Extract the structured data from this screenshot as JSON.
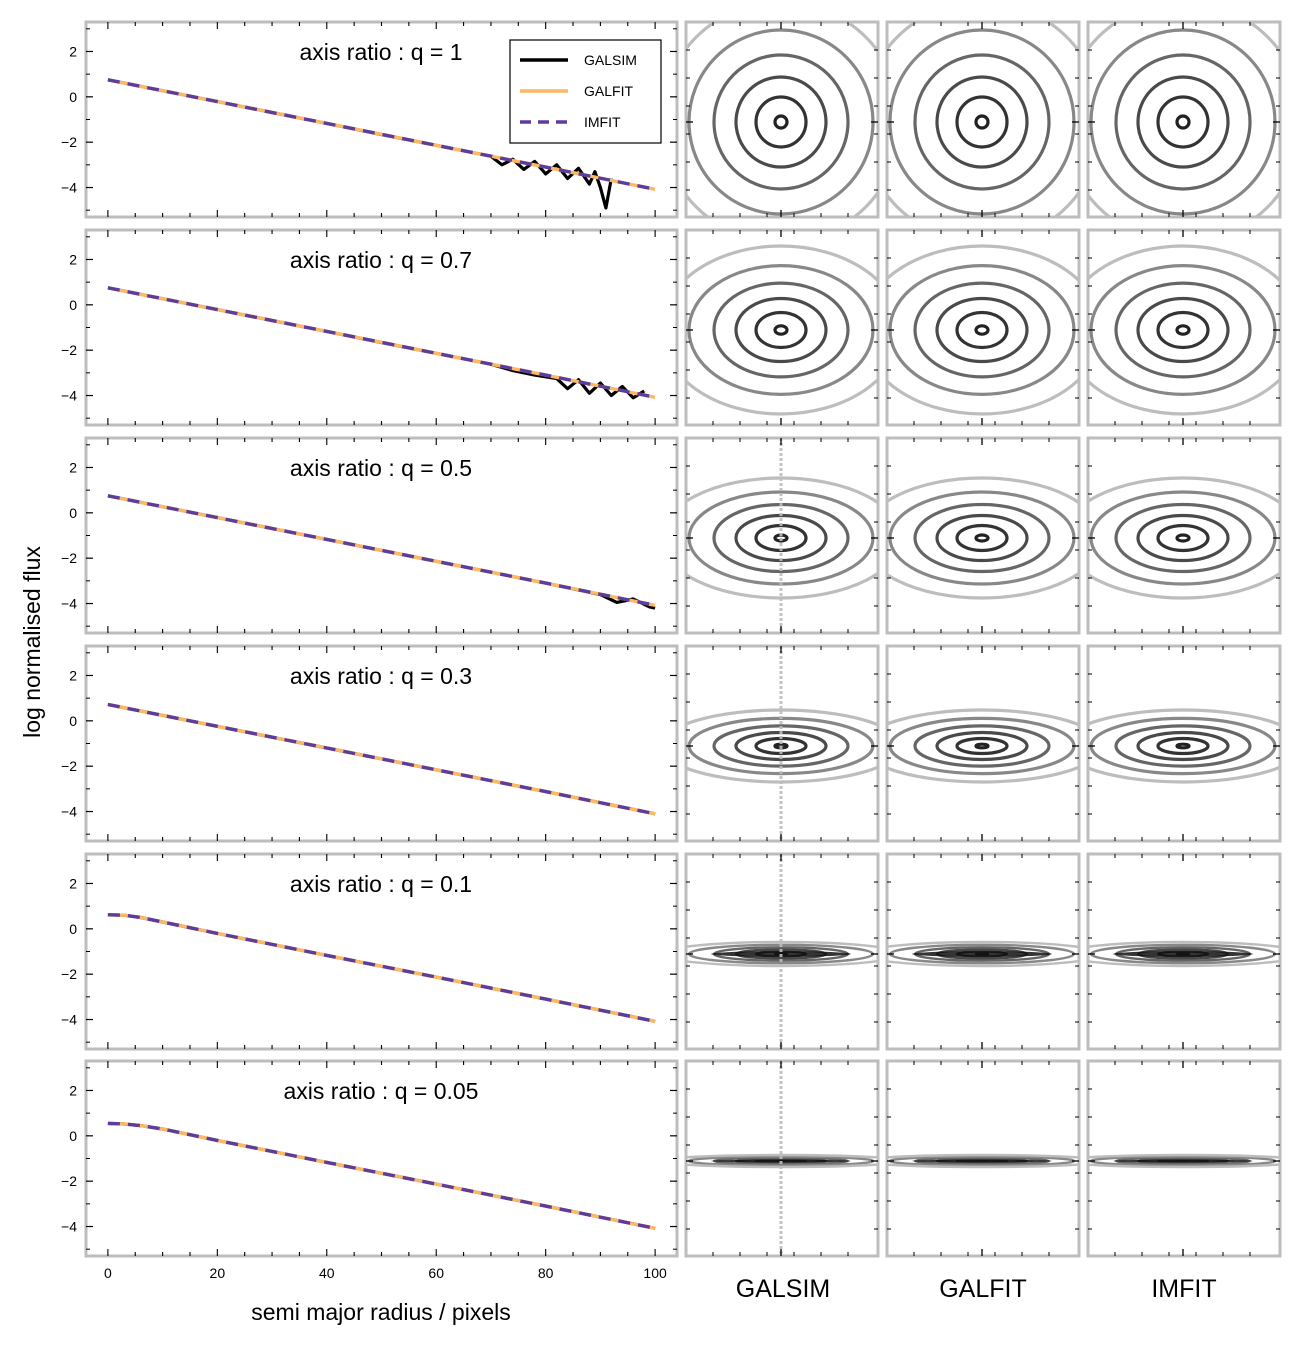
{
  "ylabel": "log normalised flux",
  "xlabel": "semi major radius / pixels",
  "column_labels": [
    "GALSIM",
    "GALFIT",
    "IMFIT"
  ],
  "colors": {
    "GALSIM": "#000000",
    "GALFIT": "#fdb863",
    "IMFIT": "#5e3c99",
    "frame": "#bdbdbd"
  },
  "legend": [
    {
      "label": "GALSIM",
      "style": "solid",
      "color": "#000000"
    },
    {
      "label": "GALFIT",
      "style": "solid",
      "color": "#fdb863"
    },
    {
      "label": "IMFIT",
      "style": "dashed",
      "color": "#5e3c99"
    }
  ],
  "panel_titles": [
    "axis ratio : q = 1",
    "axis ratio : q = 0.7",
    "axis ratio : q = 0.5",
    "axis ratio : q = 0.3",
    "axis ratio : q = 0.1",
    "axis ratio : q = 0.05"
  ],
  "chart_data": {
    "type": "line",
    "xlim": [
      -4,
      104
    ],
    "ylim": [
      -5.3,
      3.3
    ],
    "xticks": [
      0,
      20,
      40,
      60,
      80,
      100
    ],
    "yticks": [
      -4,
      -2,
      0,
      2
    ],
    "legend_position": "top-right (first panel)",
    "panels": [
      {
        "q": 1,
        "series": [
          {
            "name": "GALSIM",
            "x": [
              0,
              10,
              20,
              30,
              40,
              50,
              60,
              70,
              72,
              74,
              76,
              78,
              80,
              82,
              84,
              86,
              88,
              89,
              90,
              91,
              92
            ],
            "y": [
              0.75,
              0.27,
              -0.21,
              -0.69,
              -1.17,
              -1.66,
              -2.14,
              -2.62,
              -3.0,
              -2.75,
              -3.2,
              -2.85,
              -3.4,
              -3.0,
              -3.6,
              -3.15,
              -3.85,
              -3.3,
              -4.0,
              -4.9,
              -3.6
            ]
          },
          {
            "name": "GALFIT",
            "x": [
              0,
              20,
              40,
              60,
              80,
              100
            ],
            "y": [
              0.75,
              -0.21,
              -1.17,
              -2.14,
              -3.1,
              -4.08
            ]
          },
          {
            "name": "IMFIT",
            "x": [
              0,
              20,
              40,
              60,
              80,
              100
            ],
            "y": [
              0.75,
              -0.21,
              -1.17,
              -2.14,
              -3.1,
              -4.08
            ]
          }
        ]
      },
      {
        "q": 0.7,
        "series": [
          {
            "name": "GALSIM",
            "x": [
              0,
              10,
              20,
              30,
              40,
              50,
              60,
              70,
              74,
              78,
              82,
              84,
              86,
              88,
              90,
              92,
              94,
              96,
              98
            ],
            "y": [
              0.75,
              0.27,
              -0.21,
              -0.69,
              -1.17,
              -1.66,
              -2.14,
              -2.62,
              -2.9,
              -3.1,
              -3.25,
              -3.7,
              -3.3,
              -3.9,
              -3.45,
              -4.0,
              -3.6,
              -4.1,
              -3.8
            ]
          },
          {
            "name": "GALFIT",
            "x": [
              0,
              20,
              40,
              60,
              80,
              100
            ],
            "y": [
              0.75,
              -0.21,
              -1.17,
              -2.14,
              -3.1,
              -4.08
            ]
          },
          {
            "name": "IMFIT",
            "x": [
              0,
              20,
              40,
              60,
              80,
              100
            ],
            "y": [
              0.75,
              -0.21,
              -1.17,
              -2.14,
              -3.1,
              -4.08
            ]
          }
        ]
      },
      {
        "q": 0.5,
        "series": [
          {
            "name": "GALSIM",
            "x": [
              0,
              20,
              40,
              60,
              80,
              90,
              93,
              96,
              99,
              100
            ],
            "y": [
              0.75,
              -0.21,
              -1.17,
              -2.14,
              -3.1,
              -3.6,
              -3.95,
              -3.8,
              -4.15,
              -4.2
            ]
          },
          {
            "name": "GALFIT",
            "x": [
              0,
              20,
              40,
              60,
              80,
              100
            ],
            "y": [
              0.75,
              -0.21,
              -1.17,
              -2.14,
              -3.1,
              -4.08
            ]
          },
          {
            "name": "IMFIT",
            "x": [
              0,
              20,
              40,
              60,
              80,
              100
            ],
            "y": [
              0.75,
              -0.21,
              -1.17,
              -2.14,
              -3.1,
              -4.08
            ]
          }
        ]
      },
      {
        "q": 0.3,
        "series": [
          {
            "name": "GALSIM",
            "x": [
              0,
              20,
              40,
              60,
              80,
              100
            ],
            "y": [
              0.72,
              -0.24,
              -1.2,
              -2.16,
              -3.12,
              -4.1
            ]
          },
          {
            "name": "GALFIT",
            "x": [
              0,
              20,
              40,
              60,
              80,
              100
            ],
            "y": [
              0.72,
              -0.24,
              -1.2,
              -2.16,
              -3.12,
              -4.1
            ]
          },
          {
            "name": "IMFIT",
            "x": [
              0,
              20,
              40,
              60,
              80,
              100
            ],
            "y": [
              0.72,
              -0.24,
              -1.2,
              -2.16,
              -3.12,
              -4.1
            ]
          }
        ]
      },
      {
        "q": 0.1,
        "series": [
          {
            "name": "GALSIM",
            "x": [
              0,
              3,
              6,
              10,
              20,
              40,
              60,
              80,
              100
            ],
            "y": [
              0.62,
              0.6,
              0.5,
              0.3,
              -0.2,
              -1.17,
              -2.13,
              -3.1,
              -4.08
            ]
          },
          {
            "name": "GALFIT",
            "x": [
              0,
              3,
              6,
              10,
              20,
              40,
              60,
              80,
              100
            ],
            "y": [
              0.62,
              0.6,
              0.5,
              0.3,
              -0.2,
              -1.17,
              -2.13,
              -3.1,
              -4.08
            ]
          },
          {
            "name": "IMFIT",
            "x": [
              0,
              3,
              6,
              10,
              20,
              40,
              60,
              80,
              100
            ],
            "y": [
              0.62,
              0.6,
              0.5,
              0.3,
              -0.2,
              -1.17,
              -2.13,
              -3.1,
              -4.08
            ]
          }
        ]
      },
      {
        "q": 0.05,
        "series": [
          {
            "name": "GALSIM",
            "x": [
              0,
              3,
              6,
              10,
              15,
              20,
              40,
              60,
              80,
              100
            ],
            "y": [
              0.55,
              0.52,
              0.45,
              0.3,
              0.05,
              -0.2,
              -1.17,
              -2.13,
              -3.1,
              -4.08
            ]
          },
          {
            "name": "GALFIT",
            "x": [
              0,
              3,
              6,
              10,
              15,
              20,
              40,
              60,
              80,
              100
            ],
            "y": [
              0.55,
              0.52,
              0.45,
              0.3,
              0.05,
              -0.2,
              -1.17,
              -2.13,
              -3.1,
              -4.08
            ]
          },
          {
            "name": "IMFIT",
            "x": [
              0,
              3,
              6,
              10,
              15,
              20,
              40,
              60,
              80,
              100
            ],
            "y": [
              0.55,
              0.52,
              0.45,
              0.3,
              0.05,
              -0.2,
              -1.17,
              -2.13,
              -3.1,
              -4.08
            ]
          }
        ]
      }
    ]
  }
}
